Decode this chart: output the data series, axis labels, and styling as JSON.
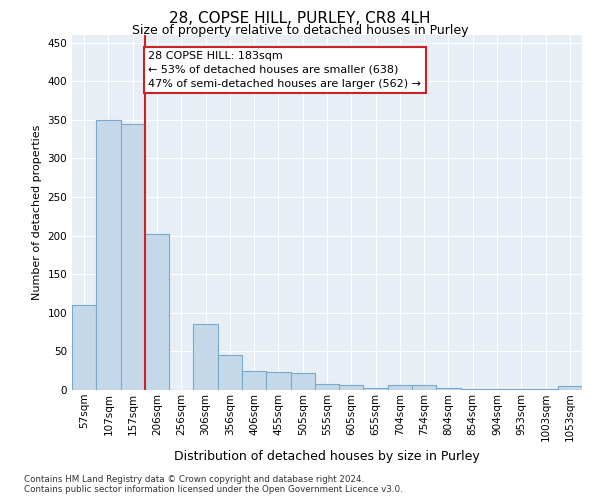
{
  "title": "28, COPSE HILL, PURLEY, CR8 4LH",
  "subtitle": "Size of property relative to detached houses in Purley",
  "xlabel": "Distribution of detached houses by size in Purley",
  "ylabel": "Number of detached properties",
  "categories": [
    "57sqm",
    "107sqm",
    "157sqm",
    "206sqm",
    "256sqm",
    "306sqm",
    "356sqm",
    "406sqm",
    "455sqm",
    "505sqm",
    "555sqm",
    "605sqm",
    "655sqm",
    "704sqm",
    "754sqm",
    "804sqm",
    "854sqm",
    "904sqm",
    "953sqm",
    "1003sqm",
    "1053sqm"
  ],
  "values": [
    110,
    350,
    345,
    202,
    0,
    85,
    46,
    25,
    23,
    22,
    8,
    7,
    3,
    7,
    7,
    2,
    1,
    1,
    1,
    1,
    5
  ],
  "bar_color": "#c5d8ea",
  "bar_edge_color": "#7aaac8",
  "bg_color": "#e8eef6",
  "grid_color": "#ffffff",
  "vline_x": 3.0,
  "vline_color": "#cc2222",
  "annotation_text": "28 COPSE HILL: 183sqm\n← 53% of detached houses are smaller (638)\n47% of semi-detached houses are larger (562) →",
  "annotation_box_color": "#ffffff",
  "annotation_box_edge_color": "#cc2222",
  "footer_text": "Contains HM Land Registry data © Crown copyright and database right 2024.\nContains public sector information licensed under the Open Government Licence v3.0.",
  "ylim": [
    0,
    460
  ],
  "yticks": [
    0,
    50,
    100,
    150,
    200,
    250,
    300,
    350,
    400,
    450
  ],
  "title_fontsize": 11,
  "subtitle_fontsize": 9,
  "ylabel_fontsize": 8,
  "xlabel_fontsize": 9,
  "tick_fontsize": 7.5
}
